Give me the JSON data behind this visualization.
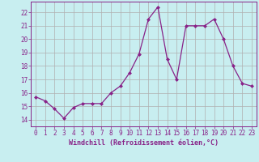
{
  "x": [
    0,
    1,
    2,
    3,
    4,
    5,
    6,
    7,
    8,
    9,
    10,
    11,
    12,
    13,
    14,
    15,
    16,
    17,
    18,
    19,
    20,
    21,
    22,
    23
  ],
  "y": [
    15.7,
    15.4,
    14.8,
    14.1,
    14.9,
    15.2,
    15.2,
    15.2,
    16.0,
    16.5,
    17.5,
    18.9,
    21.5,
    22.4,
    18.5,
    17.0,
    21.0,
    21.0,
    21.0,
    21.5,
    20.0,
    18.0,
    16.7,
    16.5
  ],
  "line_color": "#882288",
  "marker": "D",
  "marker_size": 2.0,
  "bg_color": "#c8eef0",
  "grid_color": "#b0b0b0",
  "xlabel": "Windchill (Refroidissement éolien,°C)",
  "ylim": [
    13.5,
    22.8
  ],
  "yticks": [
    14,
    15,
    16,
    17,
    18,
    19,
    20,
    21,
    22
  ],
  "xticks": [
    0,
    1,
    2,
    3,
    4,
    5,
    6,
    7,
    8,
    9,
    10,
    11,
    12,
    13,
    14,
    15,
    16,
    17,
    18,
    19,
    20,
    21,
    22,
    23
  ],
  "xlim": [
    -0.5,
    23.5
  ],
  "tick_color": "#882288",
  "label_color": "#882288",
  "axis_color": "#882288",
  "tick_fontsize": 5.5,
  "xlabel_fontsize": 6.0,
  "linewidth": 0.9
}
